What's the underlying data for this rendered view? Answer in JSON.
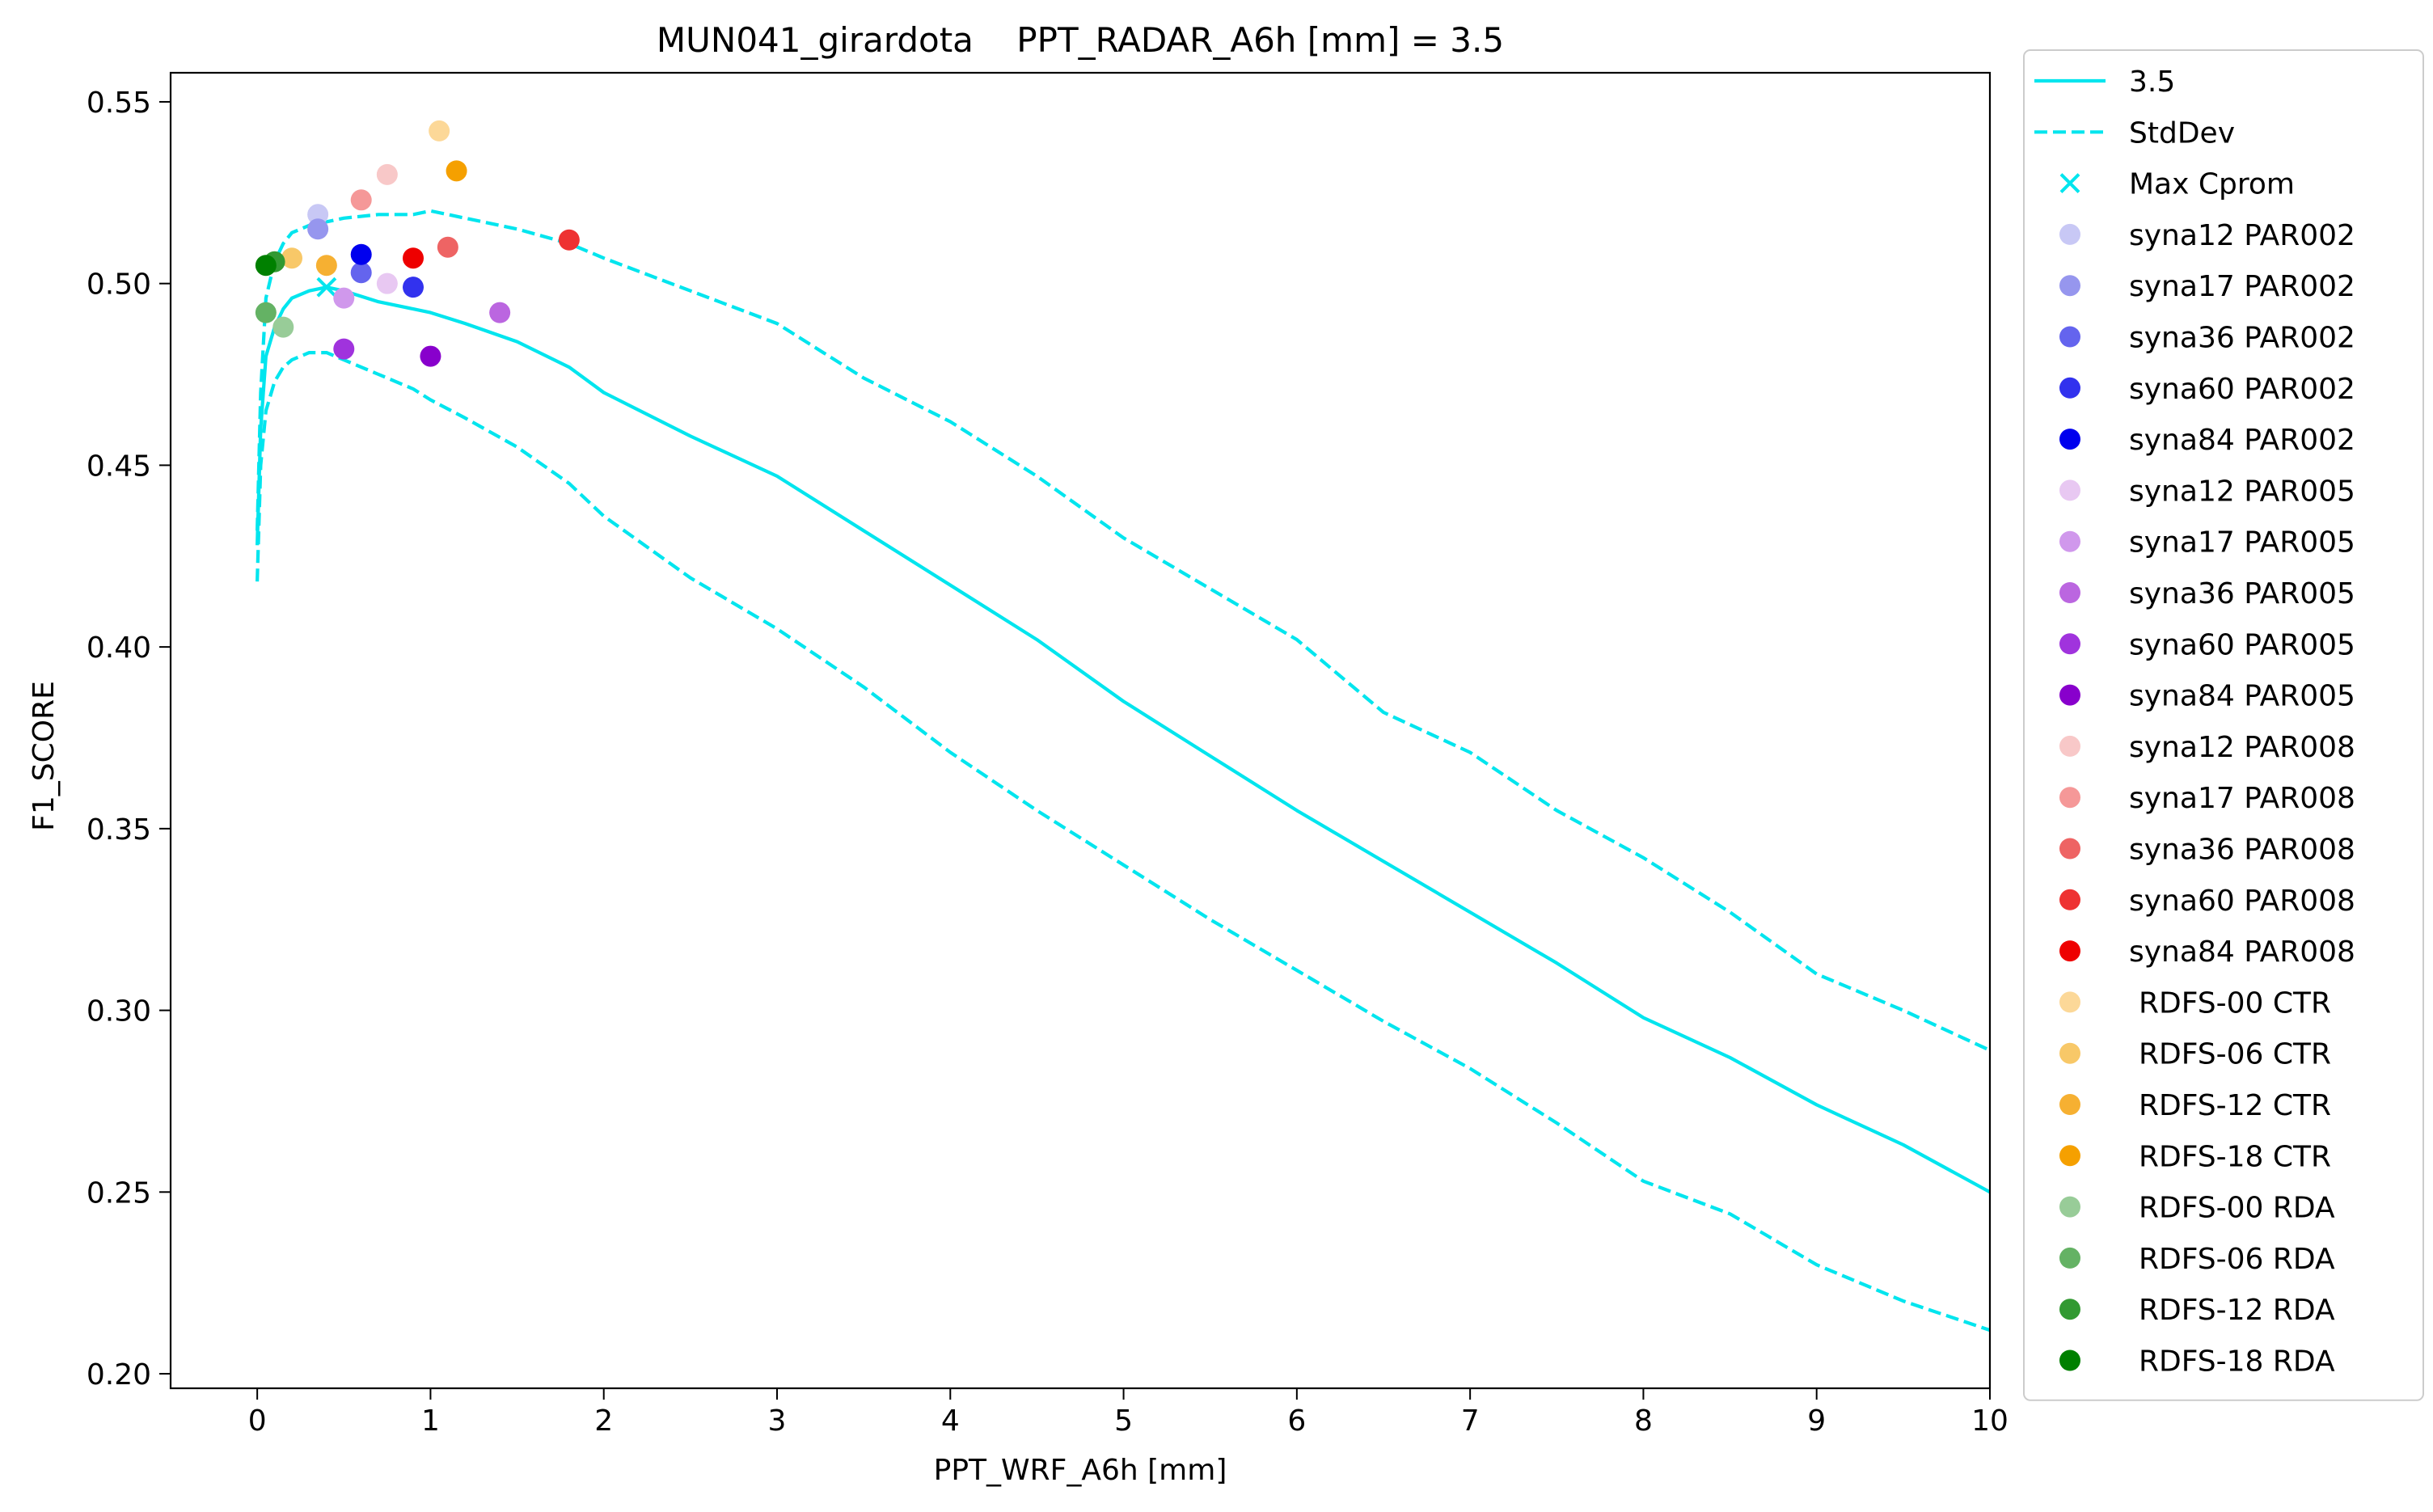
{
  "chart_data": {
    "type": "line",
    "title": "MUN041_girardota    PPT_RADAR_A6h [mm] = 3.5",
    "xlabel": "PPT_WRF_A6h [mm]",
    "ylabel": "F1_SCORE",
    "xlim": [
      -0.5,
      10
    ],
    "ylim": [
      0.196,
      0.558
    ],
    "x_ticks": [
      0,
      1,
      2,
      3,
      4,
      5,
      6,
      7,
      8,
      9,
      10
    ],
    "y_ticks": [
      0.2,
      0.25,
      0.3,
      0.35,
      0.4,
      0.45,
      0.5,
      0.55
    ],
    "x_tick_labels": [
      "0",
      "1",
      "2",
      "3",
      "4",
      "5",
      "6",
      "7",
      "8",
      "9",
      "10"
    ],
    "y_tick_labels": [
      "0.20",
      "0.25",
      "0.30",
      "0.35",
      "0.40",
      "0.45",
      "0.50",
      "0.55"
    ],
    "grid": false,
    "legend_position": "outside-right",
    "line_color": "#00e5ee",
    "series": [
      {
        "name": "3.5",
        "style": "solid",
        "x": [
          0,
          0.02,
          0.05,
          0.1,
          0.15,
          0.2,
          0.3,
          0.4,
          0.5,
          0.7,
          0.9,
          1.0,
          1.2,
          1.5,
          1.8,
          2.0,
          2.5,
          3.0,
          3.5,
          4.0,
          4.5,
          5.0,
          5.5,
          6.0,
          6.5,
          7.0,
          7.5,
          8.0,
          8.5,
          9.0,
          9.5,
          10.0
        ],
        "y": [
          0.428,
          0.46,
          0.48,
          0.488,
          0.493,
          0.496,
          0.498,
          0.499,
          0.498,
          0.495,
          0.493,
          0.492,
          0.489,
          0.484,
          0.477,
          0.47,
          0.458,
          0.447,
          0.432,
          0.417,
          0.402,
          0.385,
          0.37,
          0.355,
          0.341,
          0.327,
          0.313,
          0.298,
          0.287,
          0.274,
          0.263,
          0.25
        ]
      },
      {
        "name": "StdDev",
        "style": "dashed",
        "x": [
          0,
          0.02,
          0.05,
          0.1,
          0.15,
          0.2,
          0.3,
          0.4,
          0.5,
          0.7,
          0.9,
          1.0,
          1.2,
          1.5,
          1.8,
          2.0,
          2.5,
          3.0,
          3.5,
          4.0,
          4.5,
          5.0,
          5.5,
          6.0,
          6.5,
          7.0,
          7.5,
          8.0,
          8.5,
          9.0,
          9.5,
          10.0
        ],
        "y": [
          0.432,
          0.47,
          0.496,
          0.506,
          0.511,
          0.514,
          0.516,
          0.517,
          0.518,
          0.519,
          0.519,
          0.52,
          0.518,
          0.515,
          0.511,
          0.507,
          0.498,
          0.489,
          0.474,
          0.462,
          0.447,
          0.43,
          0.416,
          0.402,
          0.382,
          0.371,
          0.355,
          0.342,
          0.327,
          0.31,
          0.3,
          0.289
        ]
      },
      {
        "name": "",
        "style": "dashed",
        "x": [
          0,
          0.02,
          0.05,
          0.1,
          0.15,
          0.2,
          0.3,
          0.4,
          0.5,
          0.7,
          0.9,
          1.0,
          1.2,
          1.5,
          1.8,
          2.0,
          2.5,
          3.0,
          3.5,
          4.0,
          4.5,
          5.0,
          5.5,
          6.0,
          6.5,
          7.0,
          7.5,
          8.0,
          8.5,
          9.0,
          9.5,
          10.0
        ],
        "y": [
          0.418,
          0.45,
          0.465,
          0.473,
          0.477,
          0.479,
          0.481,
          0.481,
          0.479,
          0.475,
          0.471,
          0.468,
          0.463,
          0.455,
          0.445,
          0.436,
          0.419,
          0.405,
          0.389,
          0.371,
          0.355,
          0.34,
          0.325,
          0.311,
          0.297,
          0.284,
          0.269,
          0.253,
          0.244,
          0.23,
          0.22,
          0.212
        ]
      }
    ],
    "max_cprom": {
      "name": "Max Cprom",
      "x": 0.4,
      "y": 0.499
    },
    "scatter": [
      {
        "name": "syna12 PAR002",
        "color": "#c8c8f5",
        "x": 0.35,
        "y": 0.519
      },
      {
        "name": "syna17 PAR002",
        "color": "#9696ee",
        "x": 0.35,
        "y": 0.515
      },
      {
        "name": "syna36 PAR002",
        "color": "#6464ee",
        "x": 0.6,
        "y": 0.503
      },
      {
        "name": "syna60 PAR002",
        "color": "#3232ee",
        "x": 0.9,
        "y": 0.499
      },
      {
        "name": "syna84 PAR002",
        "color": "#0000ee",
        "x": 0.6,
        "y": 0.508
      },
      {
        "name": "syna12 PAR005",
        "color": "#e8c8f2",
        "x": 0.75,
        "y": 0.5
      },
      {
        "name": "syna17 PAR005",
        "color": "#d098ec",
        "x": 0.5,
        "y": 0.496
      },
      {
        "name": "syna36 PAR005",
        "color": "#bb66e0",
        "x": 1.4,
        "y": 0.492
      },
      {
        "name": "syna60 PAR005",
        "color": "#a033dd",
        "x": 0.5,
        "y": 0.482
      },
      {
        "name": "syna84 PAR005",
        "color": "#8800cc",
        "x": 1.0,
        "y": 0.48
      },
      {
        "name": "syna12 PAR008",
        "color": "#f8c8c8",
        "x": 0.75,
        "y": 0.53
      },
      {
        "name": "syna17 PAR008",
        "color": "#f59898",
        "x": 0.6,
        "y": 0.523
      },
      {
        "name": "syna36 PAR008",
        "color": "#ee6464",
        "x": 1.1,
        "y": 0.51
      },
      {
        "name": "syna60 PAR008",
        "color": "#ee3232",
        "x": 1.8,
        "y": 0.512
      },
      {
        "name": "syna84 PAR008",
        "color": "#ee0000",
        "x": 0.9,
        "y": 0.507
      },
      {
        "name": "RDFS-00 CTR",
        "color": "#fcd898",
        "x": 1.05,
        "y": 0.542
      },
      {
        "name": "RDFS-06 CTR",
        "color": "#f8c868",
        "x": 0.2,
        "y": 0.507
      },
      {
        "name": "RDFS-12 CTR",
        "color": "#f6b032",
        "x": 0.4,
        "y": 0.505
      },
      {
        "name": "RDFS-18 CTR",
        "color": "#f5a000",
        "x": 1.15,
        "y": 0.531
      },
      {
        "name": "RDFS-00 RDA",
        "color": "#98cc98",
        "x": 0.15,
        "y": 0.488
      },
      {
        "name": "RDFS-06 RDA",
        "color": "#64b264",
        "x": 0.05,
        "y": 0.492
      },
      {
        "name": "RDFS-12 RDA",
        "color": "#329932",
        "x": 0.1,
        "y": 0.506
      },
      {
        "name": "RDFS-18 RDA",
        "color": "#008000",
        "x": 0.05,
        "y": 0.505
      }
    ]
  }
}
